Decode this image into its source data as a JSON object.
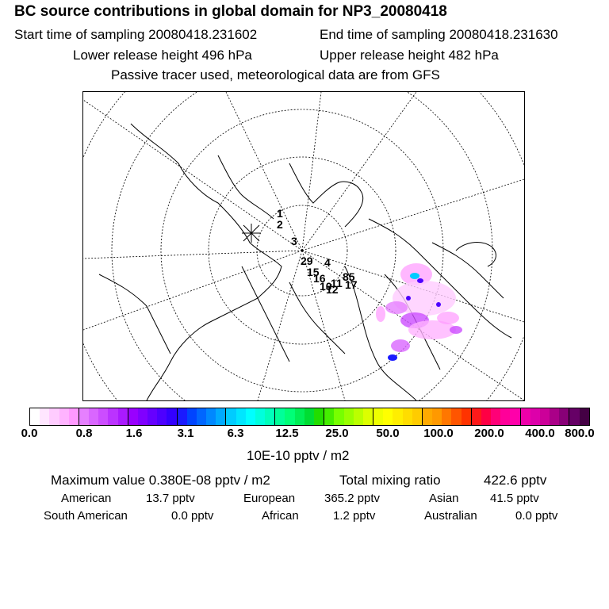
{
  "header": {
    "title": "BC  source contributions in global domain for NP3_20080418",
    "start": "Start time of sampling 20080418.231602",
    "end": "End time of sampling 20080418.231630",
    "lower": "Lower release height  496 hPa",
    "upper": "Upper release height  482 hPa",
    "note": "Passive tracer used, meteorological data are from GFS"
  },
  "map": {
    "track_labels": [
      "1",
      "2",
      "3",
      "29",
      "4",
      "15",
      "16",
      "11",
      "10",
      "12",
      "85",
      "17"
    ]
  },
  "colorbar": {
    "colors": [
      "#ffffff",
      "#ffe6ff",
      "#ffccff",
      "#ffb3ff",
      "#ff99ff",
      "#e680ff",
      "#d966ff",
      "#cc4dff",
      "#bb33ff",
      "#aa1aff",
      "#9900ff",
      "#8000ff",
      "#6600ff",
      "#4d00ff",
      "#3300ff",
      "#1a1aff",
      "#0044ff",
      "#0066ff",
      "#0088ff",
      "#00aaff",
      "#00ccff",
      "#00e6ff",
      "#00ffff",
      "#00ffdd",
      "#00ffbb",
      "#00ff99",
      "#00ff77",
      "#00ee55",
      "#00dd33",
      "#22dd00",
      "#44ee00",
      "#77ff00",
      "#99ff00",
      "#bbff00",
      "#ddff00",
      "#eeff00",
      "#ffff00",
      "#ffee00",
      "#ffdd00",
      "#ffcc00",
      "#ffaa00",
      "#ff9900",
      "#ff7700",
      "#ff5500",
      "#ff3300",
      "#ff1a1a",
      "#ff0044",
      "#ff0077",
      "#ff0099",
      "#ff00aa",
      "#ee00aa",
      "#dd00aa",
      "#cc0099",
      "#aa0088",
      "#880077",
      "#660066",
      "#440044"
    ],
    "ticks": [
      "0.0",
      "0.8",
      "1.6",
      "3.1",
      "6.3",
      "12.5",
      "25.0",
      "50.0",
      "100.0",
      "200.0",
      "400.0",
      "800.0"
    ],
    "units": "10E-10 pptv / m2"
  },
  "stats": {
    "max_label": "Maximum value  0.380E-08 pptv / m2",
    "total_label": "Total mixing ratio",
    "total_value": "422.6 pptv",
    "regions": [
      {
        "name": "American",
        "value": "13.7 pptv"
      },
      {
        "name": "European",
        "value": "365.2 pptv"
      },
      {
        "name": "Asian",
        "value": "41.5 pptv"
      },
      {
        "name": "South American",
        "value": "0.0 pptv"
      },
      {
        "name": "African",
        "value": "1.2 pptv"
      },
      {
        "name": "Australian",
        "value": "0.0 pptv"
      }
    ]
  }
}
